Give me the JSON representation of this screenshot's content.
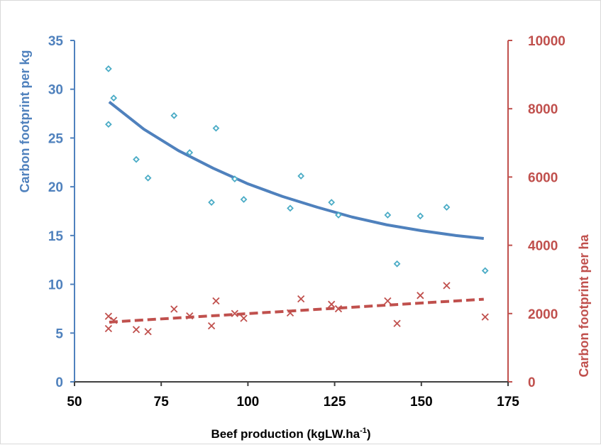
{
  "chart_data": {
    "type": "scatter",
    "xlabel": "Beef production (kgLW.ha",
    "xlabel_sup": "-1",
    "xlabel_end": ")",
    "ylabel_left": "Carbon footprint per kg",
    "ylabel_right": "Carbon footprint per ha",
    "xlim": [
      50,
      175
    ],
    "xticks": [
      "50",
      "75",
      "100",
      "125",
      "150",
      "175"
    ],
    "ylim_left": [
      0,
      35
    ],
    "yticks_left": [
      "0",
      "5",
      "10",
      "15",
      "20",
      "25",
      "30",
      "35"
    ],
    "ylim_right": [
      0,
      10000
    ],
    "yticks_right": [
      "0",
      "2000",
      "4000",
      "6000",
      "8000",
      "10000"
    ],
    "grid": false,
    "legend": "none",
    "colors": {
      "left_axis": "#4f81bd",
      "right_axis": "#c0504d",
      "per_kg_points": "#4bacc6",
      "per_kg_trend": "#4f81bd",
      "per_ha_points": "#c0504d",
      "per_ha_trend": "#c0504d"
    },
    "series": [
      {
        "axis": "left",
        "marker": "diamond",
        "x": [
          59.8,
          59.8,
          61.3,
          67.8,
          71.2,
          78.7,
          83.2,
          89.5,
          90.8,
          96.2,
          98.8,
          112.2,
          115.3,
          124.1,
          126.1,
          140.3,
          143.0,
          149.7,
          157.3,
          168.4
        ],
        "y": [
          32.1,
          26.4,
          29.1,
          22.8,
          20.9,
          27.3,
          23.5,
          18.4,
          26.0,
          20.8,
          18.7,
          17.8,
          21.1,
          18.4,
          17.1,
          17.1,
          12.1,
          17.0,
          17.9,
          11.4
        ]
      },
      {
        "axis": "left",
        "type": "line",
        "style": "solid",
        "x": [
          60,
          70,
          80,
          90,
          100,
          110,
          120,
          130,
          140,
          150,
          160,
          168
        ],
        "y": [
          28.7,
          25.9,
          23.7,
          21.9,
          20.3,
          19.0,
          17.9,
          16.9,
          16.1,
          15.5,
          15.0,
          14.7
        ]
      },
      {
        "axis": "right",
        "marker": "x",
        "x": [
          59.8,
          59.8,
          61.3,
          67.8,
          71.2,
          78.7,
          83.2,
          89.5,
          90.8,
          96.2,
          98.8,
          112.2,
          115.3,
          124.1,
          126.1,
          140.3,
          143.0,
          149.7,
          157.3,
          168.4
        ],
        "y": [
          1560,
          1920,
          1800,
          1530,
          1470,
          2130,
          1930,
          1640,
          2370,
          2000,
          1860,
          2020,
          2430,
          2270,
          2140,
          2370,
          1710,
          2530,
          2820,
          1900
        ]
      },
      {
        "axis": "right",
        "type": "line",
        "style": "dashed",
        "x": [
          60,
          168
        ],
        "y": [
          1750,
          2420
        ]
      }
    ]
  }
}
